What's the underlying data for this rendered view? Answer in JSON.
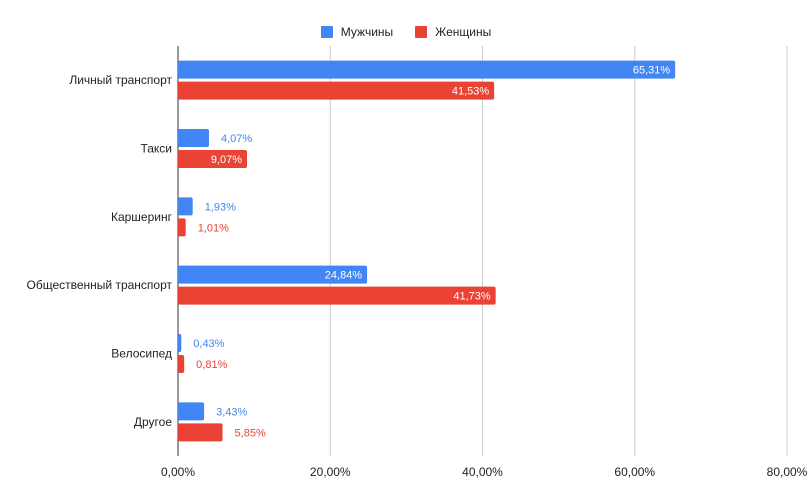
{
  "chart_data": {
    "type": "bar",
    "orientation": "horizontal",
    "categories": [
      "Личный транспорт",
      "Такси",
      "Каршеринг",
      "Общественный транспорт",
      "Велосипед",
      "Другое"
    ],
    "series": [
      {
        "name": "Мужчины",
        "color": "#4285f4",
        "values": [
          65.31,
          4.07,
          1.93,
          24.84,
          0.43,
          3.43
        ],
        "labels": [
          "65,31%",
          "4,07%",
          "1,93%",
          "24,84%",
          "0,43%",
          "3,43%"
        ]
      },
      {
        "name": "Женщины",
        "color": "#ea4335",
        "values": [
          41.53,
          9.07,
          1.01,
          41.73,
          0.81,
          5.85
        ],
        "labels": [
          "41,53%",
          "9,07%",
          "1,01%",
          "41,73%",
          "0,81%",
          "5,85%"
        ]
      }
    ],
    "xlim": [
      0,
      80
    ],
    "xticks": [
      0,
      20,
      40,
      60,
      80
    ],
    "xtick_labels": [
      "0,00%",
      "20,00%",
      "40,00%",
      "60,00%",
      "80,00%"
    ],
    "grid": true,
    "legend_position": "top-center"
  }
}
